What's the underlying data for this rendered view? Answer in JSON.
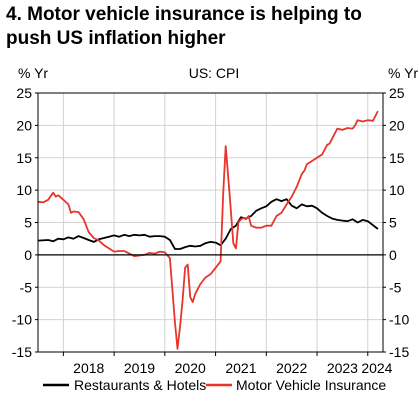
{
  "title_lines": [
    "4. Motor vehicle insurance is helping to",
    "push US inflation higher"
  ],
  "chart_data": {
    "type": "line",
    "subtitle": "US: CPI",
    "ylabel_left": "% Yr",
    "ylabel_right": "% Yr",
    "ylim": [
      -15,
      25
    ],
    "yticks": [
      -15,
      -10,
      -5,
      0,
      5,
      10,
      15,
      20,
      25
    ],
    "xlim": [
      2017.5,
      2024.3
    ],
    "xtick_labels": [
      "2018",
      "2019",
      "2020",
      "2021",
      "2022",
      "2023",
      "2024"
    ],
    "grid": true,
    "legend_position": "bottom",
    "series": [
      {
        "name": "Restaurants & Hotels",
        "color": "#000000",
        "points": [
          [
            2017.5,
            2.2
          ],
          [
            2017.7,
            2.3
          ],
          [
            2017.8,
            2.1
          ],
          [
            2017.9,
            2.5
          ],
          [
            2018.0,
            2.4
          ],
          [
            2018.1,
            2.7
          ],
          [
            2018.2,
            2.5
          ],
          [
            2018.3,
            2.9
          ],
          [
            2018.4,
            2.6
          ],
          [
            2018.5,
            2.3
          ],
          [
            2018.6,
            2.0
          ],
          [
            2018.7,
            2.4
          ],
          [
            2018.8,
            2.6
          ],
          [
            2018.9,
            2.8
          ],
          [
            2019.0,
            3.0
          ],
          [
            2019.1,
            2.8
          ],
          [
            2019.2,
            3.1
          ],
          [
            2019.3,
            2.9
          ],
          [
            2019.4,
            3.1
          ],
          [
            2019.5,
            3.0
          ],
          [
            2019.6,
            3.1
          ],
          [
            2019.7,
            2.8
          ],
          [
            2019.8,
            2.9
          ],
          [
            2019.9,
            2.9
          ],
          [
            2020.0,
            2.8
          ],
          [
            2020.1,
            2.3
          ],
          [
            2020.2,
            0.9
          ],
          [
            2020.3,
            0.9
          ],
          [
            2020.4,
            1.2
          ],
          [
            2020.5,
            1.4
          ],
          [
            2020.6,
            1.3
          ],
          [
            2020.7,
            1.4
          ],
          [
            2020.8,
            1.8
          ],
          [
            2020.9,
            2.0
          ],
          [
            2021.0,
            1.9
          ],
          [
            2021.1,
            1.5
          ],
          [
            2021.2,
            2.5
          ],
          [
            2021.3,
            4.0
          ],
          [
            2021.4,
            4.5
          ],
          [
            2021.5,
            5.8
          ],
          [
            2021.6,
            5.6
          ],
          [
            2021.7,
            6.0
          ],
          [
            2021.8,
            6.8
          ],
          [
            2021.9,
            7.2
          ],
          [
            2022.0,
            7.5
          ],
          [
            2022.1,
            8.2
          ],
          [
            2022.2,
            8.6
          ],
          [
            2022.3,
            8.3
          ],
          [
            2022.4,
            8.6
          ],
          [
            2022.5,
            7.6
          ],
          [
            2022.6,
            7.2
          ],
          [
            2022.7,
            7.8
          ],
          [
            2022.8,
            7.5
          ],
          [
            2022.9,
            7.6
          ],
          [
            2023.0,
            7.2
          ],
          [
            2023.1,
            6.5
          ],
          [
            2023.2,
            6.0
          ],
          [
            2023.3,
            5.6
          ],
          [
            2023.4,
            5.4
          ],
          [
            2023.5,
            5.3
          ],
          [
            2023.6,
            5.2
          ],
          [
            2023.7,
            5.5
          ],
          [
            2023.8,
            5.0
          ],
          [
            2023.9,
            5.4
          ],
          [
            2024.0,
            5.2
          ],
          [
            2024.1,
            4.6
          ],
          [
            2024.2,
            4.0
          ]
        ]
      },
      {
        "name": "Motor Vehicle Insurance",
        "color": "#e8342a",
        "points": [
          [
            2017.5,
            8.2
          ],
          [
            2017.6,
            8.1
          ],
          [
            2017.7,
            8.5
          ],
          [
            2017.8,
            9.6
          ],
          [
            2017.85,
            9.0
          ],
          [
            2017.9,
            9.2
          ],
          [
            2018.0,
            8.5
          ],
          [
            2018.1,
            7.8
          ],
          [
            2018.15,
            6.5
          ],
          [
            2018.2,
            6.7
          ],
          [
            2018.3,
            6.6
          ],
          [
            2018.4,
            5.5
          ],
          [
            2018.5,
            3.5
          ],
          [
            2018.6,
            2.6
          ],
          [
            2018.7,
            2.2
          ],
          [
            2018.8,
            1.5
          ],
          [
            2018.9,
            1.0
          ],
          [
            2019.0,
            0.5
          ],
          [
            2019.1,
            0.6
          ],
          [
            2019.2,
            0.6
          ],
          [
            2019.3,
            0.2
          ],
          [
            2019.4,
            -0.2
          ],
          [
            2019.5,
            -0.1
          ],
          [
            2019.6,
            0.0
          ],
          [
            2019.7,
            0.3
          ],
          [
            2019.8,
            0.2
          ],
          [
            2019.9,
            0.5
          ],
          [
            2020.0,
            0.4
          ],
          [
            2020.1,
            -0.5
          ],
          [
            2020.2,
            -10.5
          ],
          [
            2020.25,
            -14.5
          ],
          [
            2020.3,
            -11.0
          ],
          [
            2020.35,
            -7.0
          ],
          [
            2020.4,
            -2.0
          ],
          [
            2020.45,
            -1.5
          ],
          [
            2020.5,
            -6.5
          ],
          [
            2020.55,
            -7.3
          ],
          [
            2020.6,
            -6.0
          ],
          [
            2020.7,
            -4.5
          ],
          [
            2020.8,
            -3.5
          ],
          [
            2020.9,
            -3.0
          ],
          [
            2021.0,
            -2.0
          ],
          [
            2021.1,
            -1.0
          ],
          [
            2021.15,
            9.5
          ],
          [
            2021.2,
            16.8
          ],
          [
            2021.28,
            9.0
          ],
          [
            2021.35,
            1.8
          ],
          [
            2021.4,
            1.0
          ],
          [
            2021.45,
            5.0
          ],
          [
            2021.5,
            5.5
          ],
          [
            2021.55,
            5.7
          ],
          [
            2021.6,
            5.5
          ],
          [
            2021.65,
            6.0
          ],
          [
            2021.7,
            4.5
          ],
          [
            2021.8,
            4.2
          ],
          [
            2021.9,
            4.2
          ],
          [
            2022.0,
            4.5
          ],
          [
            2022.1,
            4.5
          ],
          [
            2022.2,
            6.0
          ],
          [
            2022.3,
            6.5
          ],
          [
            2022.4,
            7.8
          ],
          [
            2022.5,
            9.0
          ],
          [
            2022.6,
            10.5
          ],
          [
            2022.7,
            12.5
          ],
          [
            2022.75,
            13.0
          ],
          [
            2022.8,
            14.0
          ],
          [
            2022.9,
            14.5
          ],
          [
            2023.0,
            15.0
          ],
          [
            2023.1,
            15.5
          ],
          [
            2023.2,
            17.0
          ],
          [
            2023.25,
            17.2
          ],
          [
            2023.3,
            18.0
          ],
          [
            2023.4,
            19.5
          ],
          [
            2023.5,
            19.3
          ],
          [
            2023.6,
            19.6
          ],
          [
            2023.7,
            19.5
          ],
          [
            2023.75,
            20.0
          ],
          [
            2023.8,
            20.8
          ],
          [
            2023.9,
            20.6
          ],
          [
            2024.0,
            20.8
          ],
          [
            2024.1,
            20.7
          ],
          [
            2024.2,
            22.2
          ]
        ]
      }
    ]
  }
}
